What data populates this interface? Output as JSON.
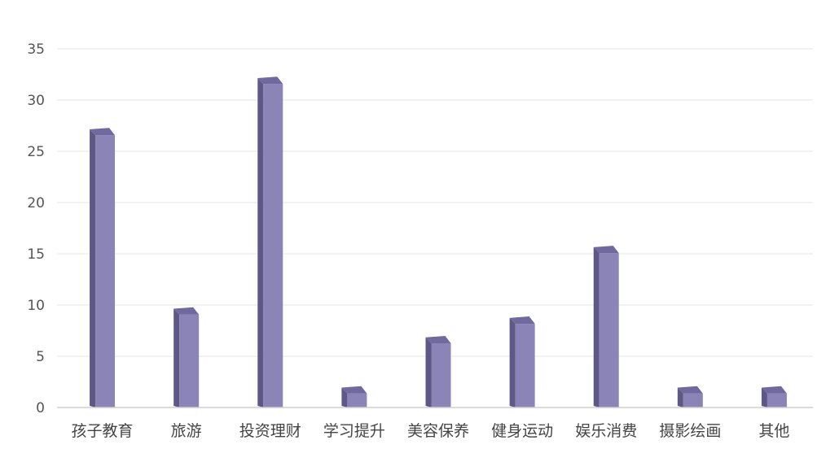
{
  "chart_data": {
    "type": "bar",
    "title": "",
    "xlabel": "",
    "ylabel": "",
    "categories": [
      "孩子教育",
      "旅游",
      "投资理财",
      "学习提升",
      "美容保养",
      "健身运动",
      "娱乐消费",
      "摄影绘画",
      "其他"
    ],
    "values": [
      27,
      9.5,
      32,
      1.8,
      6.7,
      8.6,
      15.5,
      1.8,
      1.8
    ],
    "ylim": [
      0,
      35
    ],
    "yticks": [
      "0",
      "5",
      "10",
      "15",
      "20",
      "25",
      "30",
      "35"
    ],
    "grid": true,
    "legend": "none",
    "colors": {
      "bar_front": "#8b84b6",
      "bar_side": "#5e5886",
      "bar_top": "#6f69a0"
    }
  }
}
